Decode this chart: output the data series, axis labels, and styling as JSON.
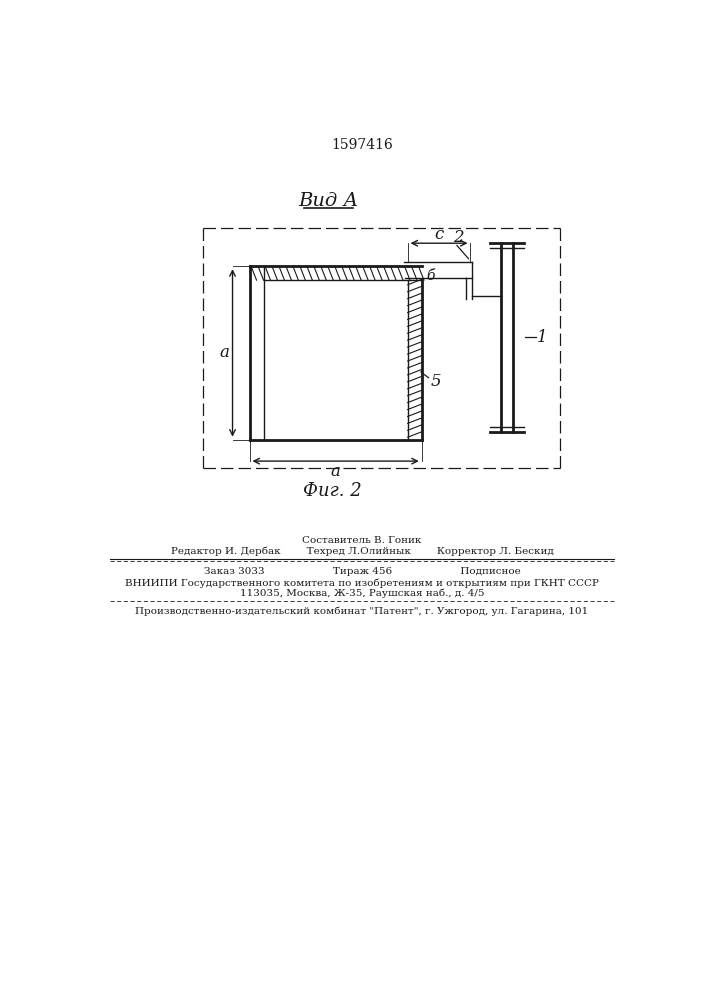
{
  "bg_color": "#ffffff",
  "line_color": "#1a1a1a",
  "patent_number": "1597416",
  "view_label": "Вид А",
  "fig_label": "Фиг. 2",
  "footer_lines": [
    "Составитель В. Гоник",
    "Редактор И. Дербак        Техред Л.Олийнык        Корректор Л. Бескид",
    "Заказ 3033                     Тираж 456                     Подписное",
    "ВНИИПИ Государственного комитета по изобретениям и открытиям при ГКНТ СССР",
    "113035, Москва, Ж-35, Раушская наб., д. 4/5",
    "Производственно-издательский комбинат \"Патент\", г. Ужгород, ул. Гагарина, 101"
  ],
  "label_1": "1",
  "label_2": "2",
  "label_5": "5",
  "label_a_vert": "a",
  "label_a_horiz": "a",
  "label_c": "c",
  "label_delta": "б"
}
